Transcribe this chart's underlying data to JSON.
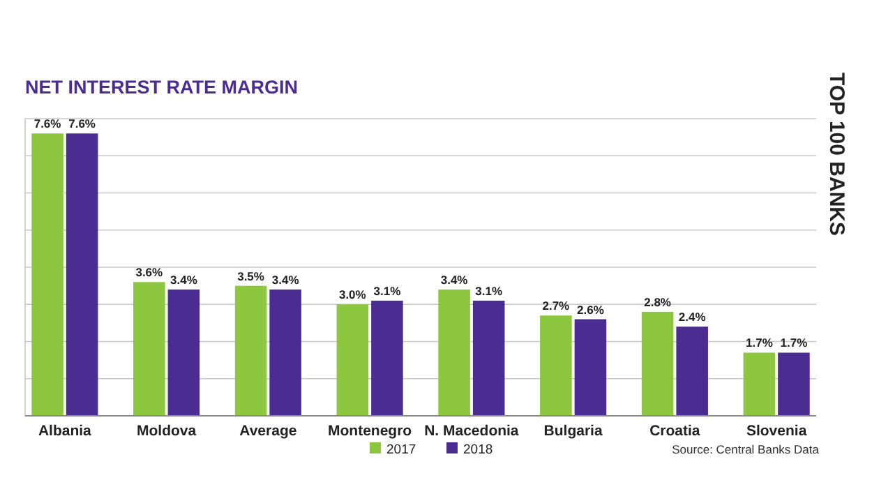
{
  "chart_data": {
    "type": "bar",
    "title": "NET INTEREST RATE MARGIN",
    "categories": [
      "Albania",
      "Moldova",
      "Average",
      "Montenegro",
      "N. Macedonia",
      "Bulgaria",
      "Croatia",
      "Slovenia"
    ],
    "series": [
      {
        "name": "2017",
        "color": "#8dc63f",
        "values": [
          7.6,
          3.6,
          3.5,
          3.0,
          3.4,
          2.7,
          2.8,
          1.7
        ],
        "value_labels": [
          "7.6%",
          "3.6%",
          "3.5%",
          "3.0%",
          "3.4%",
          "2.7%",
          "2.8%",
          "1.7%"
        ]
      },
      {
        "name": "2018",
        "color": "#4b2c91",
        "values": [
          7.6,
          3.4,
          3.4,
          3.1,
          3.1,
          2.6,
          2.4,
          1.7
        ],
        "value_labels": [
          "7.6%",
          "3.4%",
          "3.4%",
          "3.1%",
          "3.1%",
          "2.6%",
          "2.4%",
          "1.7%"
        ]
      }
    ],
    "ylim": [
      0,
      8
    ],
    "yticks": [
      {
        "value": 0,
        "label": null
      },
      {
        "value": 1,
        "label": null
      },
      {
        "value": 2,
        "label": null
      },
      {
        "value": 3,
        "label": null
      },
      {
        "value": 4,
        "label": null
      },
      {
        "value": 5,
        "label": null
      },
      {
        "value": 6,
        "label": null
      },
      {
        "value": 7,
        "label": null
      },
      {
        "value": 8,
        "label": null
      }
    ],
    "tick_labels": "x",
    "grid": "y",
    "legend": "bottom",
    "annotations": [
      "Source: Central Banks Data",
      "TOP 100 BANKS"
    ]
  }
}
